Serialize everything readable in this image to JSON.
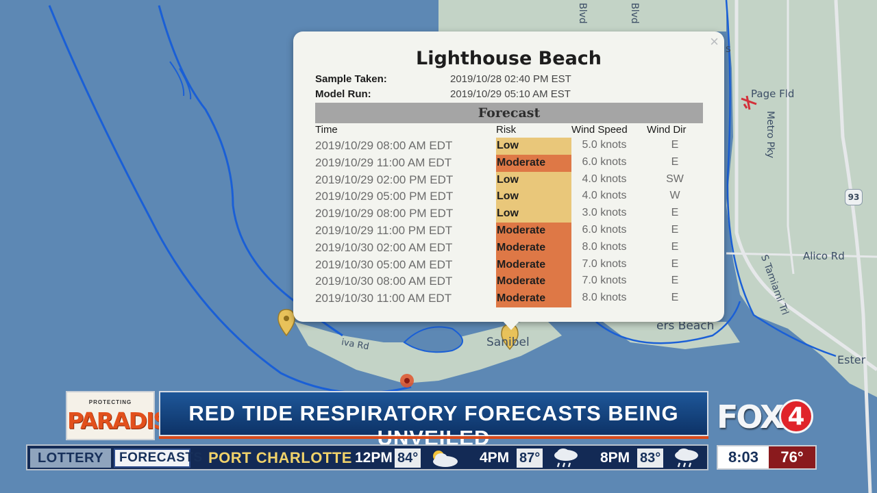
{
  "popup": {
    "title": "Lighthouse Beach",
    "close_icon": "×",
    "sample_label": "Sample Taken:",
    "sample_value": "2019/10/28 02:40 PM EST",
    "model_label": "Model Run:",
    "model_value": "2019/10/29 05:10 AM EST",
    "forecast_header": "Forecast",
    "columns": [
      "Time",
      "Risk",
      "Wind Speed",
      "Wind Dir"
    ],
    "rows": [
      {
        "time": "2019/10/29 08:00 AM EDT",
        "risk": "Low",
        "speed": "5.0 knots",
        "dir": "E"
      },
      {
        "time": "2019/10/29 11:00 AM EDT",
        "risk": "Moderate",
        "speed": "6.0 knots",
        "dir": "E"
      },
      {
        "time": "2019/10/29 02:00 PM EDT",
        "risk": "Low",
        "speed": "4.0 knots",
        "dir": "SW"
      },
      {
        "time": "2019/10/29 05:00 PM EDT",
        "risk": "Low",
        "speed": "4.0 knots",
        "dir": "W"
      },
      {
        "time": "2019/10/29 08:00 PM EDT",
        "risk": "Low",
        "speed": "3.0 knots",
        "dir": "E"
      },
      {
        "time": "2019/10/29 11:00 PM EDT",
        "risk": "Moderate",
        "speed": "6.0 knots",
        "dir": "E"
      },
      {
        "time": "2019/10/30 02:00 AM EDT",
        "risk": "Moderate",
        "speed": "8.0 knots",
        "dir": "E"
      },
      {
        "time": "2019/10/30 05:00 AM EDT",
        "risk": "Moderate",
        "speed": "7.0 knots",
        "dir": "E"
      },
      {
        "time": "2019/10/30 08:00 AM EDT",
        "risk": "Moderate",
        "speed": "7.0 knots",
        "dir": "E"
      },
      {
        "time": "2019/10/30 11:00 AM EDT",
        "risk": "Moderate",
        "speed": "8.0 knots",
        "dir": "E"
      }
    ],
    "risk_colors": {
      "Low": "#e9c77a",
      "Moderate": "#de7846"
    }
  },
  "map": {
    "labels": {
      "page_fld": "Page Fld",
      "metro_pky": "Metro Pky",
      "alico_rd": "Alico Rd",
      "sanibel": "Sanibel",
      "beach": "ers Beach",
      "s_tamiami": "S Tamiami Trl",
      "estero": "Ester",
      "blvd_1": "Blvd",
      "blvd_2": "Blvd",
      "wa_rd": "iva Rd",
      "route_93": "93",
      "s_marker": "s"
    },
    "colors": {
      "water": "#5d88b4",
      "land": "#c3d3c6",
      "coast": "#1a5fd6",
      "pin_yellow": "#e8c25a",
      "pin_red": "#e0532c"
    }
  },
  "lower_third": {
    "logo_small": "PROTECTING",
    "logo_big": "PARADISE",
    "headline": "RED TIDE RESPIRATORY FORECASTS BEING UNVEILED",
    "fox_text": "FOX",
    "fox_number": "4"
  },
  "ticker": {
    "tab_lottery": "LOTTERY",
    "tab_forecasts": "FORECASTS",
    "city": "PORT CHARLOTTE",
    "slots": [
      {
        "time": "12PM",
        "temp": "84°",
        "icon": "partly-cloudy-icon"
      },
      {
        "time": "4PM",
        "temp": "87°",
        "icon": "rain-cloud-icon"
      },
      {
        "time": "8PM",
        "temp": "83°",
        "icon": "rain-cloud-icon"
      }
    ],
    "clock": "8:03",
    "current_temp": "76°"
  }
}
